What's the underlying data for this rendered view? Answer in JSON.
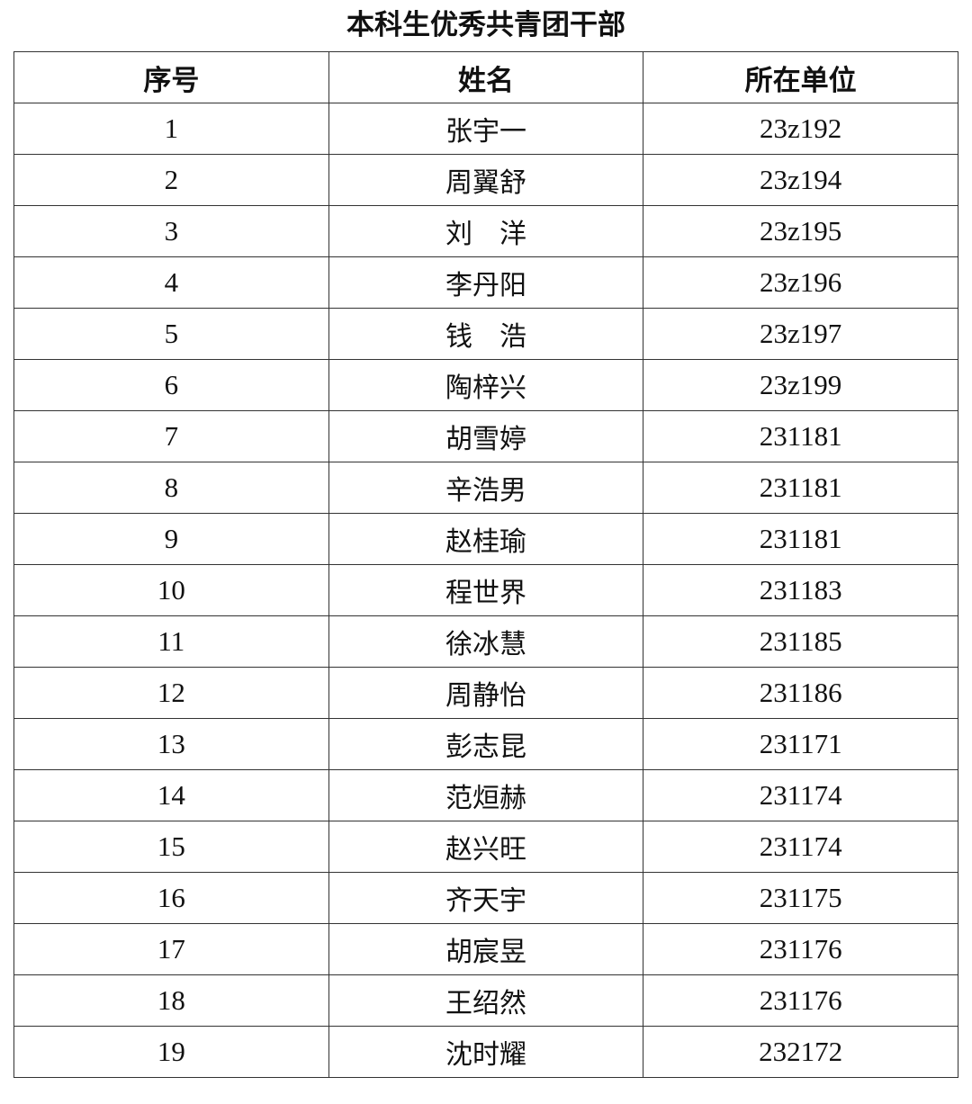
{
  "title": "本科生优秀共青团干部",
  "table": {
    "headers": [
      "序号",
      "姓名",
      "所在单位"
    ],
    "rows": [
      [
        "1",
        "张宇一",
        "23z192"
      ],
      [
        "2",
        "周翼舒",
        "23z194"
      ],
      [
        "3",
        "刘　洋",
        "23z195"
      ],
      [
        "4",
        "李丹阳",
        "23z196"
      ],
      [
        "5",
        "钱　浩",
        "23z197"
      ],
      [
        "6",
        "陶梓兴",
        "23z199"
      ],
      [
        "7",
        "胡雪婷",
        "231181"
      ],
      [
        "8",
        "辛浩男",
        "231181"
      ],
      [
        "9",
        "赵桂瑜",
        "231181"
      ],
      [
        "10",
        "程世界",
        "231183"
      ],
      [
        "11",
        "徐冰慧",
        "231185"
      ],
      [
        "12",
        "周静怡",
        "231186"
      ],
      [
        "13",
        "彭志昆",
        "231171"
      ],
      [
        "14",
        "范烜赫",
        "231174"
      ],
      [
        "15",
        "赵兴旺",
        "231174"
      ],
      [
        "16",
        "齐天宇",
        "231175"
      ],
      [
        "17",
        "胡宸昱",
        "231176"
      ],
      [
        "18",
        "王绍然",
        "231176"
      ],
      [
        "19",
        "沈时耀",
        "232172"
      ]
    ]
  }
}
